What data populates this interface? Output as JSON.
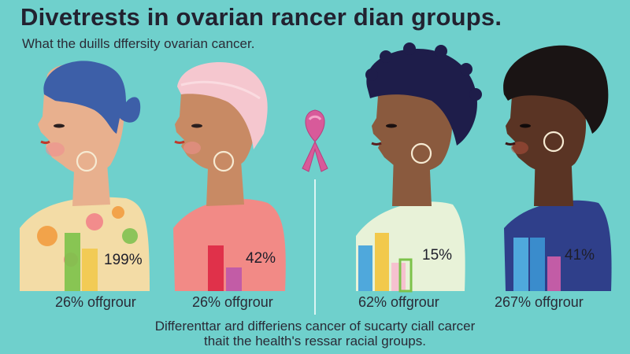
{
  "title": "Divetrests in ovarian rancer dian groups.",
  "subtitle": "What the duills dffersity ovarian cancer.",
  "colors": {
    "background": "#6fd0cc",
    "ribbon": "#d85a9a"
  },
  "groups": [
    {
      "percent": "199%",
      "stat": "26% offgrour"
    },
    {
      "percent": "42%",
      "stat": "26% offgrour"
    },
    {
      "percent": "15%",
      "stat": "62% offgrour"
    },
    {
      "percent": "41%",
      "stat": "267% offgrour"
    }
  ],
  "footer": {
    "line1": "Differenttar ard differiens cancer of sucarty ciall carcer",
    "line2": "thait the health's ressar racial groups."
  }
}
